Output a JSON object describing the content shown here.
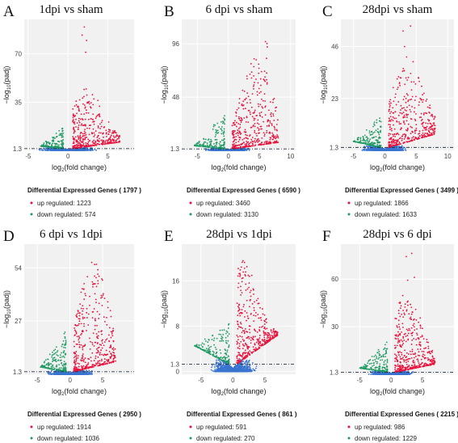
{
  "colors": {
    "up": "#e8123c",
    "down": "#1f9a63",
    "ns": "#3a74d0",
    "panel_bg": "#f1f1f1",
    "grid": "#ffffff",
    "threshold": "#223344"
  },
  "legend_title_prefix": "Differential Expressed Genes",
  "legend_up_prefix": "up regulated:",
  "legend_down_prefix": "down regulated:",
  "xlabel": "log2(fold change)",
  "ylabel": "-log10(padj)",
  "chart_data": [
    {
      "type": "scatter",
      "panel_label": "A",
      "title": "1dpi vs sham",
      "xlim": [
        -5.5,
        8.3
      ],
      "ylim": [
        0,
        95
      ],
      "xticks": [
        -5,
        0,
        5
      ],
      "yticks": [
        1.3,
        35,
        70
      ],
      "threshold_y": 1.3,
      "total": "1797",
      "up": "1223",
      "down": "574",
      "shape": {
        "xr": [
          -3.5,
          6.5
        ],
        "yr": [
          0,
          43
        ],
        "peak": 2.2
      }
    },
    {
      "type": "scatter",
      "panel_label": "B",
      "title": "6 dpi vs sham",
      "xlim": [
        -7.5,
        10.8
      ],
      "ylim": [
        0,
        118
      ],
      "xticks": [
        -5,
        0,
        5,
        10
      ],
      "yticks": [
        1.3,
        48,
        96
      ],
      "threshold_y": 1.3,
      "total": "6590",
      "up": "3460",
      "down": "3130",
      "shape": {
        "xr": [
          -5.5,
          8
        ],
        "yr": [
          0,
          80
        ],
        "peak": 4.5
      }
    },
    {
      "type": "scatter",
      "panel_label": "C",
      "title": "28dpi vs sham",
      "xlim": [
        -7,
        11
      ],
      "ylim": [
        0,
        58
      ],
      "xticks": [
        -5,
        0,
        5,
        10
      ],
      "yticks": [
        1.3,
        23,
        46
      ],
      "threshold_y": 1.3,
      "total": "3499",
      "up": "1866",
      "down": "1633",
      "shape": {
        "xr": [
          -5,
          8
        ],
        "yr": [
          0,
          38
        ],
        "peak": 3.5
      }
    },
    {
      "type": "scatter",
      "panel_label": "D",
      "title": "6 dpi vs 1dpi",
      "xlim": [
        -7,
        9.8
      ],
      "ylim": [
        0,
        66
      ],
      "xticks": [
        -5,
        0,
        5
      ],
      "yticks": [
        1.3,
        27,
        54
      ],
      "threshold_y": 1.3,
      "total": "2950",
      "up": "1914",
      "down": "1036",
      "shape": {
        "xr": [
          -4.5,
          7
        ],
        "yr": [
          0,
          55
        ],
        "peak": 3.5
      }
    },
    {
      "type": "scatter",
      "panel_label": "E",
      "title": "28dpi vs 1dpi",
      "xlim": [
        -8,
        9.8
      ],
      "ylim": [
        -0.5,
        22.5
      ],
      "xticks": [
        -5,
        0,
        5
      ],
      "yticks": [
        0,
        1.3,
        8,
        16
      ],
      "threshold_y": 1.3,
      "total": "861",
      "up": "591",
      "down": "270",
      "shape": {
        "xr": [
          -6,
          7
        ],
        "yr": [
          0,
          18
        ],
        "peak": 1.5
      }
    },
    {
      "type": "scatter",
      "panel_label": "F",
      "title": "28dpi vs 6 dpi",
      "xlim": [
        -8,
        10
      ],
      "ylim": [
        0,
        82
      ],
      "xticks": [
        -5,
        0,
        5
      ],
      "yticks": [
        1.3,
        30,
        60
      ],
      "threshold_y": 1.3,
      "total": "2215",
      "up": "986",
      "down": "1229",
      "shape": {
        "xr": [
          -5,
          7
        ],
        "yr": [
          0,
          50
        ],
        "peak": 2.5
      }
    }
  ]
}
